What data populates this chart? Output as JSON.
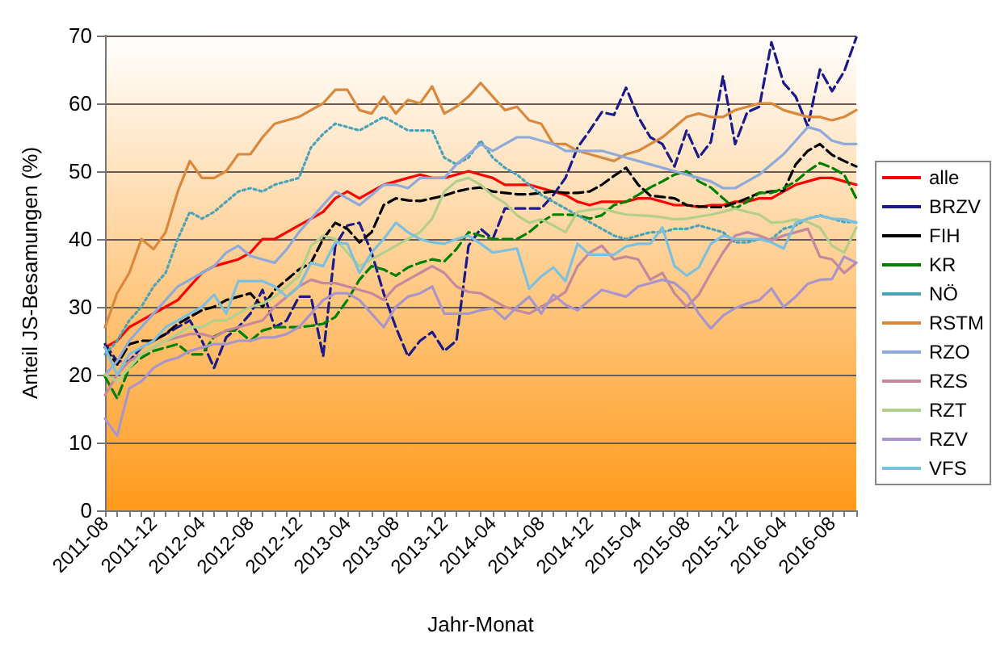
{
  "chart_data": {
    "type": "line",
    "xlabel": "Jahr-Monat",
    "ylabel": "Anteil JS-Besamungen (%)",
    "categories": [
      "2011-08",
      null,
      null,
      null,
      "2011-12",
      null,
      null,
      null,
      "2012-04",
      null,
      null,
      null,
      "2012-08",
      null,
      null,
      null,
      "2012-12",
      null,
      null,
      null,
      "2013-04",
      null,
      null,
      null,
      "2013-08",
      null,
      null,
      null,
      "2013-12",
      null,
      null,
      null,
      "2014-04",
      null,
      null,
      null,
      "2014-08",
      null,
      null,
      null,
      "2014-12",
      null,
      null,
      null,
      "2015-04",
      null,
      null,
      null,
      "2015-08",
      null,
      null,
      null,
      "2015-12",
      null,
      null,
      null,
      "2016-04",
      null,
      null,
      null,
      "2016-08",
      null,
      null
    ],
    "ylim": [
      0,
      70
    ],
    "yticks": [
      0,
      10,
      20,
      30,
      40,
      50,
      60,
      70
    ],
    "grid": "y",
    "legend": "right",
    "marker": "none",
    "series": [
      {
        "name": "alle",
        "color": "#ff0000",
        "line_style": "solid",
        "values": [
          24,
          25,
          27,
          28,
          29,
          30,
          31,
          33,
          35,
          36,
          36.5,
          37,
          38,
          40,
          40,
          41,
          42,
          43,
          44,
          46,
          47,
          46,
          47,
          48,
          48.5,
          49,
          49.5,
          49,
          49,
          49.5,
          50,
          49.5,
          49,
          48,
          48,
          48,
          47.5,
          47,
          46.5,
          45.5,
          45,
          45.5,
          45.5,
          45.5,
          46,
          46,
          45.5,
          45,
          45,
          44.7,
          45,
          45,
          45.5,
          45.5,
          46,
          46,
          47,
          48,
          48.5,
          49,
          49,
          48.5,
          48
        ]
      },
      {
        "name": "BRZV",
        "color": "#1a1a8c",
        "line_style": "dashed",
        "values": [
          24.5,
          22,
          22,
          24,
          25,
          26,
          27,
          28,
          25,
          21,
          25.5,
          27,
          29,
          32.5,
          27,
          28,
          31.5,
          31.5,
          22.7,
          39,
          42,
          42.4,
          38,
          32,
          27,
          22.7,
          25,
          26.3,
          23.5,
          25,
          39,
          41.5,
          40,
          44.5,
          44.5,
          44.5,
          44.5,
          46.5,
          49,
          53.5,
          56,
          58.7,
          58.3,
          62.3,
          58,
          55,
          54,
          50.7,
          56,
          52,
          54.3,
          64,
          54,
          58.7,
          59.5,
          69,
          63,
          61,
          56.6,
          65,
          61.8,
          64.7,
          69.7
        ]
      },
      {
        "name": "FIH",
        "color": "#000000",
        "line_style": "dashed",
        "values": [
          24,
          21.5,
          24.5,
          25,
          25,
          26,
          27.5,
          28.5,
          29.5,
          30,
          31,
          31.5,
          32,
          30,
          32.5,
          34,
          35.5,
          36.5,
          40,
          42.4,
          41.5,
          39.5,
          41,
          45,
          46,
          45.7,
          45.6,
          46,
          46.4,
          47,
          47.4,
          47.6,
          47,
          46.8,
          46.6,
          46.6,
          46.8,
          47,
          46.8,
          46.8,
          47,
          48,
          49.3,
          50.5,
          48,
          46.4,
          46.2,
          46,
          45,
          44.8,
          44.7,
          44.7,
          45.3,
          46,
          46.8,
          47,
          47.1,
          51,
          53,
          54,
          52.4,
          51.5,
          50.7
        ]
      },
      {
        "name": "KR",
        "color": "#008000",
        "line_style": "dashed",
        "values": [
          19.7,
          16.5,
          21,
          22.5,
          23.5,
          24,
          24.5,
          23,
          23,
          25.6,
          26.5,
          26.5,
          25,
          26.5,
          27,
          27,
          27,
          27.2,
          27.5,
          28.5,
          31,
          34,
          36,
          35.5,
          34.6,
          35.8,
          36.5,
          37,
          36.7,
          38.5,
          41,
          40.5,
          40,
          40,
          40,
          41,
          42.5,
          43.6,
          43.6,
          43.5,
          43,
          43.5,
          45,
          45.5,
          46.5,
          47.6,
          48.5,
          49.5,
          50,
          48.5,
          47.6,
          46,
          44.5,
          45.5,
          46.8,
          46.8,
          47.5,
          48.5,
          50,
          51.2,
          50.5,
          49.5,
          46
        ]
      },
      {
        "name": "NÖ",
        "color": "#4aa3b8",
        "line_style": "dotted",
        "values": [
          23,
          25,
          28,
          30,
          33,
          35,
          40,
          44,
          43,
          44,
          45.5,
          47,
          47.5,
          47,
          48,
          48.5,
          49,
          53.5,
          55.5,
          57,
          56.5,
          56,
          57,
          58,
          57,
          56,
          56,
          56,
          52,
          51,
          52,
          54.5,
          52,
          50.5,
          49.5,
          48,
          46.5,
          45.5,
          44.5,
          43.5,
          42.5,
          41.5,
          40.5,
          40,
          40.5,
          41,
          41,
          41.5,
          41.5,
          42,
          41.5,
          41,
          39.5,
          39.5,
          40,
          40,
          41.5,
          42,
          43,
          43.5,
          43,
          42.5,
          42.5
        ]
      },
      {
        "name": "RSTM",
        "color": "#d9883c",
        "line_style": "solid",
        "values": [
          27,
          32,
          35,
          40,
          38.5,
          41,
          47,
          51.5,
          49,
          49,
          50,
          52.5,
          52.5,
          55,
          57,
          57.5,
          58,
          59,
          60,
          62,
          62,
          59,
          58.5,
          61,
          58.5,
          60.5,
          60,
          62.5,
          58.5,
          59.5,
          61,
          63,
          61,
          59,
          59.5,
          57.5,
          57,
          54,
          54,
          53,
          52.5,
          52,
          51.5,
          52.5,
          53,
          54,
          55,
          56.5,
          58,
          58.5,
          58,
          58,
          59,
          59.5,
          60,
          60,
          59,
          58.5,
          58,
          58,
          57.5,
          58,
          59
        ]
      },
      {
        "name": "RZO",
        "color": "#8eaadb",
        "line_style": "solid",
        "values": [
          20,
          22,
          25,
          27,
          29,
          31,
          33,
          34,
          35,
          36,
          38,
          39,
          37.5,
          37,
          36.5,
          38.5,
          41,
          43,
          45,
          47,
          46,
          45,
          46.5,
          48,
          48,
          47.5,
          49,
          49,
          49,
          51,
          52.5,
          54,
          53,
          54,
          55,
          55,
          54.5,
          54,
          53,
          53,
          53,
          53,
          52.5,
          52,
          51.5,
          51,
          50.5,
          50,
          49.5,
          49,
          48.5,
          47.5,
          47.5,
          48.5,
          49.5,
          51,
          52.5,
          54.5,
          56.5,
          56,
          54.5,
          54,
          54
        ]
      },
      {
        "name": "RZS",
        "color": "#c4899c",
        "line_style": "solid",
        "values": [
          17,
          20,
          22,
          23,
          24,
          25,
          25.5,
          26,
          26,
          25.5,
          26.5,
          27,
          27.5,
          28,
          30,
          31.5,
          33,
          34,
          33.5,
          33.5,
          33,
          32.5,
          32,
          31,
          33,
          34,
          35,
          36,
          35,
          33,
          32.2,
          32,
          31,
          30,
          29.5,
          29,
          30,
          31,
          32.2,
          36,
          38,
          39,
          37,
          37.4,
          37,
          34,
          35,
          32,
          30,
          31.8,
          35,
          38,
          40.5,
          41,
          40.5,
          39.8,
          40.5,
          41,
          41.5,
          37.4,
          37,
          35,
          36.5
        ]
      },
      {
        "name": "RZT",
        "color": "#b3cf8c",
        "line_style": "solid",
        "values": [
          20,
          19,
          21,
          23,
          24,
          25,
          26,
          27,
          27,
          28,
          28,
          29,
          30,
          30.5,
          31.5,
          33,
          34.5,
          39,
          40.5,
          40,
          38,
          36,
          37,
          38,
          39,
          40,
          41,
          43,
          47,
          48.5,
          49,
          48,
          46.4,
          45.3,
          43.5,
          42.4,
          42.9,
          42,
          41,
          44,
          44.3,
          44.5,
          44,
          43.6,
          43.5,
          43.4,
          43.2,
          42.9,
          43,
          43.3,
          43.6,
          44,
          44.5,
          44,
          43.6,
          42.4,
          42.5,
          42.9,
          42.5,
          41.7,
          39,
          38,
          41.7
        ]
      },
      {
        "name": "RZV",
        "color": "#a995c9",
        "line_style": "solid",
        "values": [
          13.5,
          11,
          18,
          19,
          21,
          22,
          22.5,
          23.5,
          24,
          24.5,
          24.5,
          25,
          25,
          25.5,
          25.5,
          26,
          27,
          29,
          31,
          32,
          32,
          31,
          29,
          27,
          30,
          31.5,
          32,
          33,
          29,
          29,
          29,
          29.5,
          29.8,
          28.2,
          30,
          31.5,
          29,
          31.8,
          30.3,
          29.5,
          31,
          32.5,
          32,
          31.5,
          33,
          33.5,
          34,
          33.5,
          32,
          29,
          26.8,
          28.7,
          29.8,
          30.5,
          31,
          32.7,
          30,
          31.5,
          33.4,
          34,
          34.1,
          37.4,
          36.5
        ]
      },
      {
        "name": "VFS",
        "color": "#7cc0e0",
        "line_style": "solid",
        "values": [
          24,
          20,
          23,
          24,
          25,
          27,
          28,
          29,
          30,
          31.8,
          29,
          33.8,
          33.8,
          33.8,
          33,
          31.5,
          33,
          36.5,
          36,
          39.5,
          39.3,
          35,
          38,
          40,
          42.4,
          41,
          40,
          39.5,
          39.3,
          40,
          40.5,
          39.3,
          38,
          38.3,
          38.6,
          32.7,
          34.5,
          35.8,
          33.8,
          39.3,
          37.7,
          37.7,
          37.7,
          38.9,
          39.3,
          39.3,
          41.7,
          36,
          34.6,
          35.8,
          39.3,
          40.5,
          40,
          40,
          40,
          39.5,
          38.6,
          42.4,
          43,
          43.4,
          43,
          42.9,
          42.4
        ]
      }
    ]
  }
}
